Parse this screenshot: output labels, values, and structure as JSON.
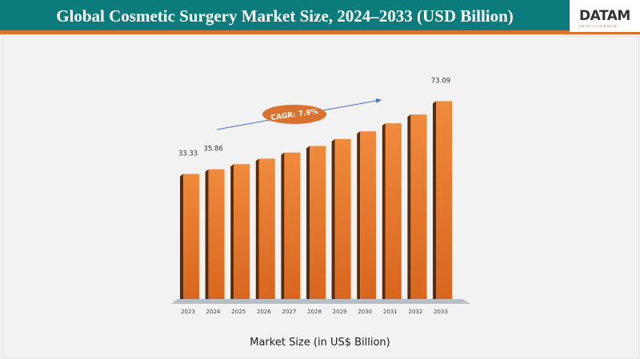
{
  "header": {
    "title": "Global Cosmetic Surgery Market Size, 2024–2033 (USD Billion)",
    "logo_text": "DATAM",
    "logo_subtext": "INTELLIGENCE"
  },
  "colors": {
    "header": "#0b7b7b",
    "accent": "#d9712f",
    "bar": "#e27a30",
    "bar_dark": "#5a2a0a",
    "arrow": "#4a6fc4"
  },
  "chart_data": {
    "type": "bar",
    "title": "Global Cosmetic Surgery Market Size, 2024–2033 (USD Billion)",
    "xlabel": "Market Size (in US$ Billion)",
    "ylabel": "",
    "categories": [
      "2023",
      "2024",
      "2025",
      "2026",
      "2027",
      "2028",
      "2029",
      "2030",
      "2031",
      "2032",
      "2033"
    ],
    "values": [
      33.33,
      35.86,
      38.7,
      41.7,
      45.0,
      48.6,
      52.4,
      56.6,
      61.0,
      65.8,
      73.09
    ],
    "data_labels": {
      "0": "33.33",
      "1": "35.86",
      "10": "73.09"
    },
    "annotation": "CAGR: 7.9%",
    "grid": false,
    "legend": "none"
  }
}
